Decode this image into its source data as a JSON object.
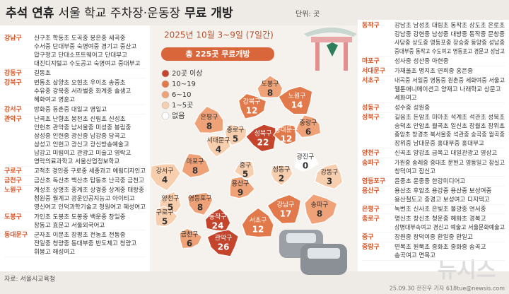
{
  "header": {
    "title_bold1": "추석 연휴",
    "title_regular": "서울 학교 주차장·운동장",
    "title_bold2": "무료 개방",
    "unit": "단위: 곳"
  },
  "map": {
    "period": "2025년 10월 3~9일 (7일간)",
    "total": "총 225곳 무료개방",
    "legend": [
      {
        "label": "20곳 이상",
        "color": "#c4452c"
      },
      {
        "label": "10~19",
        "color": "#e2794a"
      },
      {
        "label": "6~10",
        "color": "#efa277"
      },
      {
        "label": "1~5곳",
        "color": "#f7ceae"
      },
      {
        "label": "없음",
        "color": "#ffffff"
      }
    ],
    "districts": [
      {
        "name": "도봉구",
        "value": 8,
        "color": "#efa277"
      },
      {
        "name": "노원구",
        "value": 14,
        "color": "#e2794a"
      },
      {
        "name": "강북구",
        "value": 12,
        "color": "#e2794a"
      },
      {
        "name": "은평구",
        "value": 8,
        "color": "#efa277"
      },
      {
        "name": "성북구",
        "value": 22,
        "color": "#c4452c"
      },
      {
        "name": "종로구",
        "value": 5,
        "color": "#f7ceae"
      },
      {
        "name": "중랑구",
        "value": 6,
        "color": "#efa277"
      },
      {
        "name": "동대문구",
        "value": 12,
        "color": "#e2794a"
      },
      {
        "name": "서대문구",
        "value": 4,
        "color": "#f7ceae"
      },
      {
        "name": "마포구",
        "value": 8,
        "color": "#efa277"
      },
      {
        "name": "중구",
        "value": 5,
        "color": "#f7ceae"
      },
      {
        "name": "성동구",
        "value": 2,
        "color": "#f7ceae"
      },
      {
        "name": "광진구",
        "value": 0,
        "color": "#ffffff"
      },
      {
        "name": "강동구",
        "value": 3,
        "color": "#f7ceae"
      },
      {
        "name": "강서구",
        "value": 4,
        "color": "#f7ceae"
      },
      {
        "name": "용산구",
        "value": 9,
        "color": "#efa277"
      },
      {
        "name": "양천구",
        "value": 5,
        "color": "#f7ceae"
      },
      {
        "name": "영등포구",
        "value": 8,
        "color": "#efa277"
      },
      {
        "name": "구로구",
        "value": 5,
        "color": "#f7ceae"
      },
      {
        "name": "동작구",
        "value": 24,
        "color": "#c4452c"
      },
      {
        "name": "관악구",
        "value": 26,
        "color": "#c4452c"
      },
      {
        "name": "금천구",
        "value": 6,
        "color": "#efa277"
      },
      {
        "name": "서초구",
        "value": 12,
        "color": "#e2794a"
      },
      {
        "name": "강남구",
        "value": 17,
        "color": "#e2794a"
      },
      {
        "name": "송파구",
        "value": 8,
        "color": "#efa277"
      }
    ]
  },
  "left_list": [
    {
      "district": "강남구",
      "lines": [
        "신구초 학동초 도곡중 봉은중 세곡중",
        "수서중 단대부중 숙명여중 경기고 중산고",
        "압구정고 단대소프트웨어고 단대부고",
        "대진디지털고 수도공고 숙명여고 중대부고"
      ]
    },
    {
      "district": "강동구",
      "lines": [
        "길동초"
      ]
    },
    {
      "district": "강북구",
      "lines": [
        "번동초 삼양초 오현초 우이초 송중초",
        "수유중 강북중 서라벌중 화계중 솔샘고",
        "혜화여고 영훈고"
      ]
    },
    {
      "district": "강서구",
      "lines": [
        "방화중 등촌중 대일고 영일고"
      ]
    },
    {
      "district": "관악구",
      "lines": [
        "난곡초 난향초 봉천초 신림초 신성초",
        "인헌초 관악중 남서울중 미성중 봉림중",
        "삼성중 인헌중 광신중 남강중 당곡고",
        "삼성고 인헌고 광신고 광신방송예술고",
        "남강고 미림여고 관광고 미술고 영락고",
        "영락의료과학고 서울산업정보학교"
      ]
    },
    {
      "district": "구로구",
      "lines": [
        "고척초 경인중 구로중 세종과고 예림디자인고"
      ]
    },
    {
      "district": "금천구",
      "lines": [
        "금산초 독산초 백산초 탑동초 난곡중 금천고"
      ]
    },
    {
      "district": "노원구",
      "lines": [
        "계성초 상명초 중계초 상경중 상계중 태랑중",
        "청원중 월계고 광운인공지능고 아이티고",
        "영신여고 인덕과학기술고 청원여고 혜성여고"
      ]
    },
    {
      "district": "도봉구",
      "lines": [
        "가인초 도봉초 도봉중 백운중 창일중",
        "창동고 효문고 서울외국어고"
      ]
    },
    {
      "district": "동대문구",
      "lines": [
        "군자초 이문초 장평초 전농초 전동중",
        "전일중 청량중 동대부중 반도체고 청량고",
        "휘봉고 해성여고"
      ]
    }
  ],
  "right_list": [
    {
      "district": "동작구",
      "lines": [
        "강남초 남성초 대림초 동작초 상도초 은로초",
        "강남중 강현중 남성중 대방중 동작중 문창중",
        "사당중 상도중 영등포중 장승중 동양중 성남중",
        "중대부중 동작고 수도여고 영등포고 경문고 성남고"
      ]
    },
    {
      "district": "마포구",
      "lines": [
        "성사중 성산중 아현중"
      ]
    },
    {
      "district": "서대문구",
      "lines": [
        "가재울초 명지초 연희중 홍은중"
      ]
    },
    {
      "district": "서초구",
      "lines": [
        "내곡중 서일중 영동중 원촌중 세화여중 서울고",
        "웹툰애니메이션고 양재고 나래학교 상문고",
        "세화여고"
      ]
    },
    {
      "district": "성동구",
      "lines": [
        "성수중 성원중"
      ]
    },
    {
      "district": "성북구",
      "lines": [
        "길음초 돈암초 미아초 석계초 석관초 성북초",
        "숭덕초 안암초 월곡초 일신초 장월초 장위초",
        "종암초 창경초 북서울중 석관중 숭곡중 월곡중",
        "장위중 남대문중 홍대부중 홍대부고"
      ]
    },
    {
      "district": "양천구",
      "lines": [
        "신곡초 양강초 금옥고 대일관광고 영상고"
      ]
    },
    {
      "district": "송파구",
      "lines": [
        "가원중 송례중 중대초 문현고 영동일고 잠실고",
        "창덕여고 잠신고"
      ]
    },
    {
      "district": "영등포구",
      "lines": [
        "윤중초 윤중중 한강미디어고"
      ]
    },
    {
      "district": "용산구",
      "lines": [
        "용산초 후암초 용강중 용산중 보성여중",
        "용산철도고 중경고 보성여고 디지텍고"
      ]
    },
    {
      "district": "은평구",
      "lines": [
        "녹번초 신사초 은빛초 불광중 연서중"
      ]
    },
    {
      "district": "종로구",
      "lines": [
        "명신초 창신초 청운중 혜화초 경복고",
        "상명대부속여고 경신고 예술고 서울문화예술고"
      ]
    },
    {
      "district": "중구",
      "lines": [
        "장원중 창덕여중 환일중 환일고"
      ]
    },
    {
      "district": "중랑구",
      "lines": [
        "면목초 원묵초 중화초 중화중 송곡고",
        "송곡여고 면목고"
      ]
    }
  ],
  "footer": {
    "source": "자료: 서울시교육청",
    "credit": "25.09.30 전진우 기자 618tue@newsis.com",
    "watermark": "뉴시스"
  }
}
